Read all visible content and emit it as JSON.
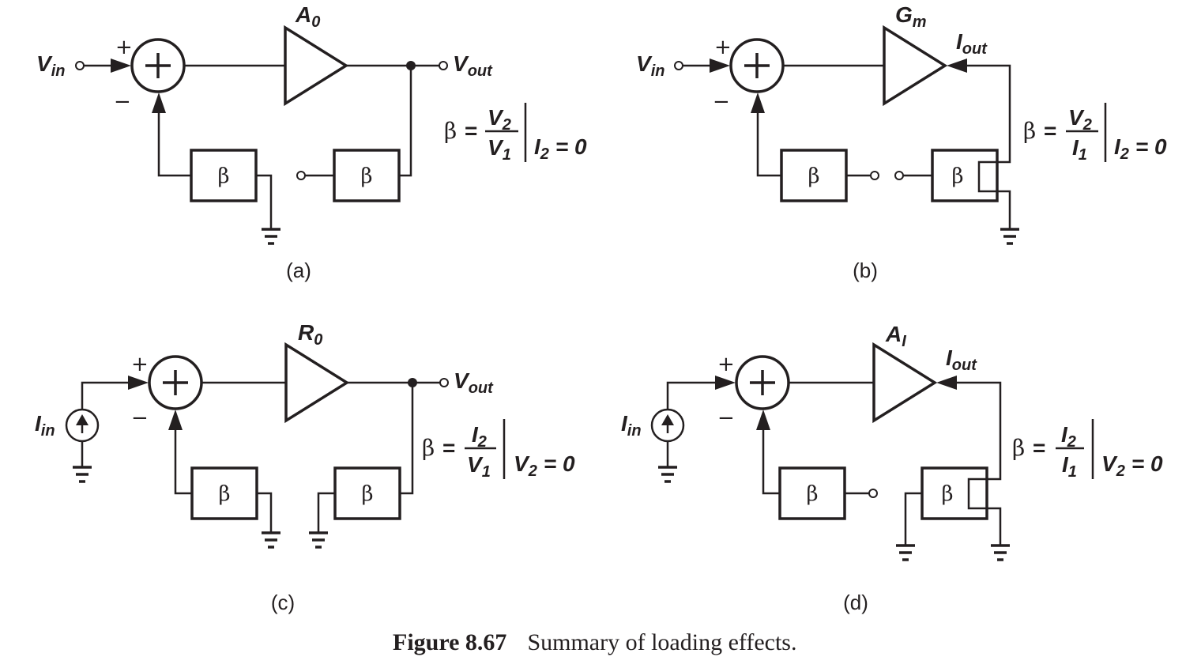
{
  "panels": {
    "a": {
      "label": "(a)",
      "input_main": "V",
      "input_sub": "in",
      "amp_main": "A",
      "amp_sub": "0",
      "out_main": "V",
      "out_sub": "out",
      "plus": "+",
      "minus": "−",
      "beta": "β",
      "formula": {
        "beta": "β",
        "eq": "=",
        "num_main": "V",
        "num_sub": "2",
        "den_main": "V",
        "den_sub": "1",
        "cond_main": "I",
        "cond_sub": "2",
        "cond_rest": "= 0"
      }
    },
    "b": {
      "label": "(b)",
      "input_main": "V",
      "input_sub": "in",
      "amp_main": "G",
      "amp_sub": "m",
      "out_main": "I",
      "out_sub": "out",
      "plus": "+",
      "minus": "−",
      "beta": "β",
      "formula": {
        "beta": "β",
        "eq": "=",
        "num_main": "V",
        "num_sub": "2",
        "den_main": "I",
        "den_sub": "1",
        "cond_main": "I",
        "cond_sub": "2",
        "cond_rest": "= 0"
      }
    },
    "c": {
      "label": "(c)",
      "input_main": "I",
      "input_sub": "in",
      "amp_main": "R",
      "amp_sub": "0",
      "out_main": "V",
      "out_sub": "out",
      "plus": "+",
      "minus": "−",
      "beta": "β",
      "formula": {
        "beta": "β",
        "eq": "=",
        "num_main": "I",
        "num_sub": "2",
        "den_main": "V",
        "den_sub": "1",
        "cond_main": "V",
        "cond_sub": "2",
        "cond_rest": "= 0"
      }
    },
    "d": {
      "label": "(d)",
      "input_main": "I",
      "input_sub": "in",
      "amp_main": "A",
      "amp_sub": "I",
      "out_main": "I",
      "out_sub": "out",
      "plus": "+",
      "minus": "−",
      "beta": "β",
      "formula": {
        "beta": "β",
        "eq": "=",
        "num_main": "I",
        "num_sub": "2",
        "den_main": "I",
        "den_sub": "1",
        "cond_main": "V",
        "cond_sub": "2",
        "cond_rest": "= 0"
      }
    }
  },
  "caption": {
    "number": "Figure 8.67",
    "text": "Summary of loading effects."
  }
}
